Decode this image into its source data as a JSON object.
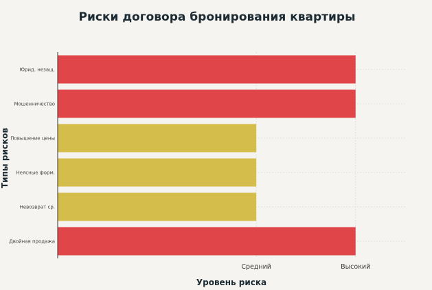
{
  "chart_data": {
    "type": "bar",
    "orientation": "horizontal",
    "title": "Риски договора бронирования квартиры",
    "xlabel": "Уровень риска",
    "ylabel": "Типы рисков",
    "categories": [
      "Юрид. незащ.",
      "Мошенничество",
      "Повышение цены",
      "Неясные форм.",
      "Невозврат ср.",
      "Двойная продажа"
    ],
    "values": [
      3,
      3,
      2,
      2,
      2,
      3
    ],
    "bar_colors": [
      "#e0454a",
      "#e0454a",
      "#d4bd4b",
      "#d4bd4b",
      "#d4bd4b",
      "#e0454a"
    ],
    "x_ticks": [
      {
        "value": 2,
        "label": "Средний"
      },
      {
        "value": 3,
        "label": "Высокий"
      }
    ],
    "xlim": [
      0,
      3.5
    ],
    "grid": true,
    "legend": "none"
  },
  "colors": {
    "background": "#f5f4f0",
    "high": "#e0454a",
    "medium": "#d4bd4b"
  }
}
